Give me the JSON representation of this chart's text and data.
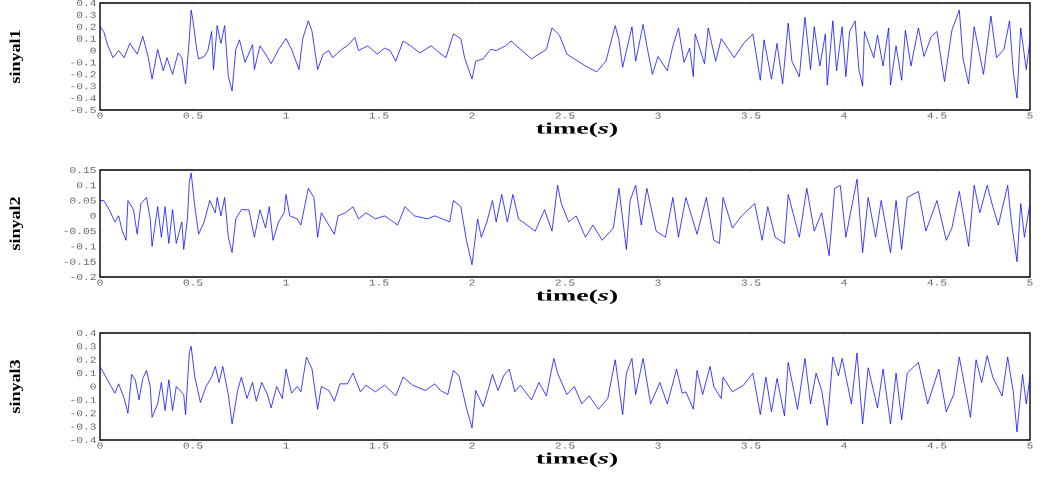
{
  "chart_data": [
    {
      "type": "line",
      "xlabel": "time(*s*)",
      "ylabel": "sinyal1",
      "color": "#0000ff",
      "xlim": [
        0,
        5
      ],
      "ylim": [
        -0.5,
        0.4
      ],
      "xticks": [
        0,
        0.5,
        1,
        1.5,
        2,
        2.5,
        3,
        3.5,
        4,
        4.5,
        5
      ],
      "yticks": [
        -0.5,
        -0.4,
        -0.3,
        -0.2,
        -0.1,
        0,
        0.1,
        0.2,
        0.3,
        0.4
      ],
      "x": [
        0,
        0.02,
        0.04,
        0.07,
        0.1,
        0.13,
        0.16,
        0.2,
        0.23,
        0.26,
        0.28,
        0.31,
        0.34,
        0.36,
        0.39,
        0.42,
        0.44,
        0.46,
        0.48,
        0.49,
        0.5,
        0.52,
        0.53,
        0.56,
        0.58,
        0.6,
        0.61,
        0.63,
        0.65,
        0.67,
        0.69,
        0.71,
        0.73,
        0.75,
        0.78,
        0.82,
        0.83,
        0.86,
        0.89,
        0.92,
        0.96,
        1.0,
        1.03,
        1.07,
        1.09,
        1.12,
        1.14,
        1.17,
        1.2,
        1.23,
        1.25,
        1.3,
        1.33,
        1.37,
        1.39,
        1.44,
        1.49,
        1.53,
        1.56,
        1.59,
        1.63,
        1.67,
        1.72,
        1.78,
        1.81,
        1.86,
        1.9,
        1.94,
        1.96,
        2.0,
        2.02,
        2.06,
        2.1,
        2.13,
        2.18,
        2.21,
        2.32,
        2.4,
        2.43,
        2.47,
        2.51,
        2.57,
        2.61,
        2.67,
        2.72,
        2.77,
        2.79,
        2.81,
        2.86,
        2.88,
        2.92,
        2.94,
        2.97,
        3.0,
        3.05,
        3.08,
        3.11,
        3.14,
        3.17,
        3.19,
        3.2,
        3.25,
        3.27,
        3.31,
        3.34,
        3.41,
        3.46,
        3.51,
        3.55,
        3.57,
        3.61,
        3.64,
        3.67,
        3.7,
        3.72,
        3.76,
        3.79,
        3.82,
        3.84,
        3.87,
        3.9,
        3.91,
        3.94,
        3.96,
        3.99,
        4.01,
        4.03,
        4.06,
        4.08,
        4.1,
        4.11,
        4.16,
        4.18,
        4.21,
        4.24,
        4.25,
        4.28,
        4.31,
        4.33,
        4.36,
        4.4,
        4.43,
        4.47,
        4.5,
        4.54,
        4.58,
        4.62,
        4.64,
        4.67,
        4.7,
        4.75,
        4.79,
        4.82,
        4.86,
        4.89,
        4.91,
        4.93,
        4.95,
        4.98,
        5.0
      ],
      "values": [
        0.2,
        0.16,
        0.05,
        -0.06,
        0,
        -0.06,
        0.06,
        -0.03,
        0.12,
        -0.06,
        -0.24,
        0.01,
        -0.17,
        -0.06,
        -0.2,
        -0.02,
        -0.06,
        -0.28,
        0.09,
        0.34,
        0.25,
        0.01,
        -0.07,
        -0.05,
        0,
        0.16,
        -0.16,
        0.21,
        0.06,
        0.21,
        -0.22,
        -0.34,
        0.01,
        0.09,
        -0.1,
        0.05,
        -0.16,
        0.04,
        -0.03,
        -0.11,
        0.01,
        0.1,
        0.01,
        -0.16,
        0.1,
        0.25,
        0.16,
        -0.16,
        -0.03,
        0,
        -0.06,
        0.01,
        0.04,
        0.11,
        0,
        0.04,
        -0.03,
        0.02,
        0,
        -0.09,
        0.08,
        0.04,
        -0.02,
        0.04,
        0,
        -0.06,
        0.14,
        0.1,
        -0.06,
        -0.24,
        -0.09,
        -0.07,
        0.01,
        0,
        0.04,
        0.08,
        -0.07,
        0.01,
        0.19,
        0.13,
        -0.03,
        -0.09,
        -0.13,
        -0.18,
        -0.09,
        0.21,
        0.09,
        -0.14,
        0.2,
        -0.09,
        0.22,
        0.04,
        -0.2,
        -0.05,
        -0.17,
        0.04,
        0.19,
        -0.1,
        0.02,
        -0.22,
        0.14,
        -0.11,
        0.19,
        -0.09,
        0.1,
        -0.06,
        0.06,
        0.14,
        -0.25,
        0.09,
        -0.24,
        0.06,
        -0.28,
        0.23,
        -0.09,
        -0.22,
        0.28,
        -0.16,
        0.2,
        -0.13,
        0.14,
        -0.29,
        0.25,
        -0.17,
        0.2,
        -0.22,
        0.16,
        0.25,
        -0.16,
        -0.3,
        0.16,
        -0.06,
        0.13,
        -0.13,
        0.19,
        -0.29,
        0.04,
        -0.25,
        0.17,
        -0.13,
        0.19,
        -0.05,
        0.12,
        0.16,
        -0.26,
        0.17,
        0.34,
        -0.07,
        -0.28,
        0.2,
        -0.2,
        0.29,
        -0.06,
        0.01,
        0.25,
        -0.18,
        -0.4,
        0.19,
        -0.16,
        0.09
      ]
    },
    {
      "type": "line",
      "xlabel": "time(*s*)",
      "ylabel": "sinyal2",
      "color": "#0000ff",
      "xlim": [
        0,
        5
      ],
      "ylim": [
        -0.2,
        0.15
      ],
      "xticks": [
        0,
        0.5,
        1,
        1.5,
        2,
        2.5,
        3,
        3.5,
        4,
        4.5,
        5
      ],
      "yticks": [
        -0.2,
        -0.15,
        -0.1,
        -0.05,
        0,
        0.05,
        0.1,
        0.15
      ],
      "x": [
        0,
        0.02,
        0.05,
        0.08,
        0.1,
        0.12,
        0.14,
        0.15,
        0.18,
        0.2,
        0.22,
        0.25,
        0.27,
        0.28,
        0.31,
        0.33,
        0.35,
        0.37,
        0.39,
        0.41,
        0.44,
        0.45,
        0.47,
        0.48,
        0.49,
        0.51,
        0.53,
        0.56,
        0.59,
        0.62,
        0.63,
        0.65,
        0.67,
        0.69,
        0.71,
        0.73,
        0.76,
        0.8,
        0.83,
        0.86,
        0.89,
        0.91,
        0.93,
        0.96,
        0.99,
        1.0,
        1.02,
        1.06,
        1.08,
        1.12,
        1.15,
        1.17,
        1.19,
        1.22,
        1.26,
        1.28,
        1.32,
        1.36,
        1.39,
        1.43,
        1.48,
        1.53,
        1.6,
        1.64,
        1.69,
        1.76,
        1.8,
        1.84,
        1.88,
        1.9,
        1.94,
        1.97,
        2.0,
        2.03,
        2.05,
        2.08,
        2.11,
        2.13,
        2.16,
        2.19,
        2.22,
        2.25,
        2.34,
        2.39,
        2.43,
        2.46,
        2.48,
        2.52,
        2.56,
        2.61,
        2.65,
        2.7,
        2.76,
        2.79,
        2.83,
        2.85,
        2.88,
        2.91,
        2.94,
        2.99,
        3.04,
        3.08,
        3.11,
        3.15,
        3.21,
        3.26,
        3.3,
        3.33,
        3.35,
        3.4,
        3.45,
        3.52,
        3.56,
        3.59,
        3.63,
        3.68,
        3.7,
        3.76,
        3.8,
        3.84,
        3.88,
        3.92,
        3.95,
        3.98,
        4.01,
        4.07,
        4.1,
        4.13,
        4.17,
        4.2,
        4.25,
        4.28,
        4.31,
        4.34,
        4.4,
        4.44,
        4.5,
        4.55,
        4.58,
        4.62,
        4.67,
        4.7,
        4.73,
        4.77,
        4.8,
        4.83,
        4.88,
        4.9,
        4.93,
        4.95,
        4.97,
        5.0
      ],
      "values": [
        0.05,
        0.05,
        0.02,
        -0.02,
        0,
        -0.05,
        -0.08,
        0.05,
        0.02,
        -0.06,
        0.04,
        0.06,
        -0.01,
        -0.1,
        0.03,
        -0.07,
        0.03,
        -0.09,
        0.02,
        -0.09,
        -0.02,
        -0.11,
        -0.01,
        0.11,
        0.14,
        0.03,
        -0.06,
        -0.02,
        0.05,
        0.01,
        0.06,
        0,
        0.06,
        -0.07,
        -0.12,
        -0.01,
        0.02,
        0.02,
        -0.07,
        0.02,
        -0.04,
        0.03,
        -0.08,
        -0.02,
        0.01,
        0.07,
        0,
        -0.01,
        -0.03,
        0.09,
        0.06,
        -0.07,
        0.01,
        -0.02,
        -0.06,
        0,
        0.01,
        0.03,
        -0.01,
        0.01,
        -0.01,
        0,
        -0.03,
        0.03,
        0,
        -0.01,
        0,
        -0.01,
        -0.02,
        0.05,
        0.03,
        -0.08,
        -0.16,
        -0.01,
        -0.07,
        -0.02,
        0.05,
        -0.02,
        0.07,
        -0.02,
        0.07,
        -0.01,
        -0.05,
        0.02,
        -0.05,
        0.1,
        0.04,
        -0.02,
        0,
        -0.07,
        -0.03,
        -0.08,
        -0.04,
        0.09,
        -0.11,
        0.05,
        0.1,
        -0.03,
        0.09,
        -0.05,
        -0.07,
        0.06,
        -0.07,
        0.06,
        -0.06,
        0.06,
        -0.08,
        -0.09,
        0.06,
        -0.04,
        0,
        0.04,
        -0.08,
        0.03,
        -0.07,
        -0.09,
        0.07,
        -0.07,
        0.09,
        -0.05,
        0.01,
        -0.13,
        0.09,
        0.1,
        -0.07,
        0.12,
        -0.12,
        0.06,
        -0.07,
        0.05,
        -0.12,
        0.05,
        -0.11,
        0.06,
        0.08,
        -0.05,
        0.05,
        -0.08,
        -0.04,
        0.08,
        -0.1,
        0.1,
        0.01,
        0.1,
        0.03,
        -0.03,
        0.1,
        -0.02,
        -0.15,
        0.04,
        -0.07,
        0.04
      ]
    },
    {
      "type": "line",
      "xlabel": "time(*s*)",
      "ylabel": "sinyal3",
      "color": "#0000ff",
      "xlim": [
        0,
        5
      ],
      "ylim": [
        -0.4,
        0.4
      ],
      "xticks": [
        0,
        0.5,
        1,
        1.5,
        2,
        2.5,
        3,
        3.5,
        4,
        4.5,
        5
      ],
      "yticks": [
        -0.4,
        -0.3,
        -0.2,
        -0.1,
        0,
        0.1,
        0.2,
        0.3,
        0.4
      ],
      "x": [
        0,
        0.02,
        0.06,
        0.08,
        0.1,
        0.13,
        0.15,
        0.17,
        0.19,
        0.21,
        0.23,
        0.25,
        0.27,
        0.28,
        0.31,
        0.33,
        0.35,
        0.37,
        0.39,
        0.41,
        0.45,
        0.46,
        0.48,
        0.49,
        0.51,
        0.54,
        0.57,
        0.6,
        0.62,
        0.64,
        0.66,
        0.69,
        0.71,
        0.74,
        0.76,
        0.79,
        0.82,
        0.84,
        0.87,
        0.9,
        0.92,
        0.95,
        0.98,
        1.0,
        1.03,
        1.06,
        1.08,
        1.11,
        1.14,
        1.17,
        1.19,
        1.23,
        1.26,
        1.29,
        1.33,
        1.36,
        1.4,
        1.43,
        1.48,
        1.53,
        1.59,
        1.63,
        1.68,
        1.75,
        1.8,
        1.83,
        1.87,
        1.9,
        1.93,
        1.97,
        2.0,
        2.02,
        2.06,
        2.09,
        2.11,
        2.14,
        2.17,
        2.2,
        2.23,
        2.26,
        2.32,
        2.36,
        2.4,
        2.44,
        2.46,
        2.51,
        2.55,
        2.59,
        2.63,
        2.68,
        2.73,
        2.77,
        2.81,
        2.83,
        2.86,
        2.88,
        2.92,
        2.96,
        3.01,
        3.05,
        3.1,
        3.13,
        3.15,
        3.19,
        3.21,
        3.24,
        3.28,
        3.3,
        3.34,
        3.35,
        3.4,
        3.46,
        3.51,
        3.55,
        3.58,
        3.61,
        3.64,
        3.68,
        3.7,
        3.75,
        3.79,
        3.82,
        3.85,
        3.88,
        3.91,
        3.94,
        3.97,
        3.99,
        4.04,
        4.07,
        4.1,
        4.13,
        4.18,
        4.21,
        4.25,
        4.28,
        4.31,
        4.34,
        4.4,
        4.45,
        4.51,
        4.55,
        4.59,
        4.62,
        4.68,
        4.71,
        4.74,
        4.77,
        4.8,
        4.85,
        4.88,
        4.91,
        4.93,
        4.96,
        4.98,
        5.0
      ],
      "values": [
        0.15,
        0.1,
        0,
        -0.05,
        0.02,
        -0.09,
        -0.2,
        0.09,
        0.05,
        -0.1,
        0.06,
        0.12,
        0,
        -0.23,
        -0.13,
        0.03,
        -0.18,
        0.05,
        -0.18,
        0,
        -0.06,
        -0.21,
        0.25,
        0.3,
        0.07,
        -0.12,
        0,
        0.07,
        0.15,
        0.03,
        0.15,
        -0.06,
        -0.28,
        -0.03,
        0.07,
        -0.09,
        0.03,
        -0.11,
        0.03,
        -0.06,
        -0.16,
        0,
        -0.09,
        0.13,
        -0.05,
        0,
        -0.04,
        0.22,
        0.13,
        -0.17,
        0,
        -0.03,
        -0.11,
        0.02,
        0.02,
        0.1,
        -0.04,
        0.01,
        -0.04,
        0.01,
        -0.07,
        0.07,
        0.01,
        -0.03,
        0.02,
        -0.03,
        -0.06,
        0.12,
        0.08,
        -0.16,
        -0.31,
        -0.03,
        -0.15,
        -0.01,
        0.09,
        -0.03,
        0.08,
        0.13,
        -0.04,
        0.01,
        -0.1,
        0.03,
        -0.07,
        0.21,
        0.1,
        -0.06,
        0,
        -0.13,
        -0.07,
        -0.17,
        -0.09,
        0.2,
        -0.21,
        0.1,
        0.21,
        -0.06,
        0.21,
        -0.13,
        0.03,
        -0.13,
        0.13,
        -0.05,
        -0.04,
        -0.17,
        0.12,
        -0.06,
        0.15,
        0,
        -0.09,
        0.07,
        -0.04,
        0.01,
        0.1,
        -0.21,
        0.07,
        -0.19,
        0.06,
        -0.22,
        0.18,
        -0.17,
        0.21,
        -0.13,
        0.1,
        -0.03,
        -0.29,
        0.22,
        0.08,
        0.21,
        -0.13,
        0.25,
        -0.28,
        0.14,
        -0.16,
        0.13,
        -0.28,
        0.1,
        -0.25,
        0.1,
        0.18,
        -0.13,
        0.13,
        -0.19,
        -0.06,
        0.22,
        -0.23,
        0.2,
        0.03,
        0.23,
        0.07,
        -0.07,
        0.22,
        -0.04,
        -0.34,
        0.09,
        -0.13,
        0.07
      ]
    }
  ]
}
